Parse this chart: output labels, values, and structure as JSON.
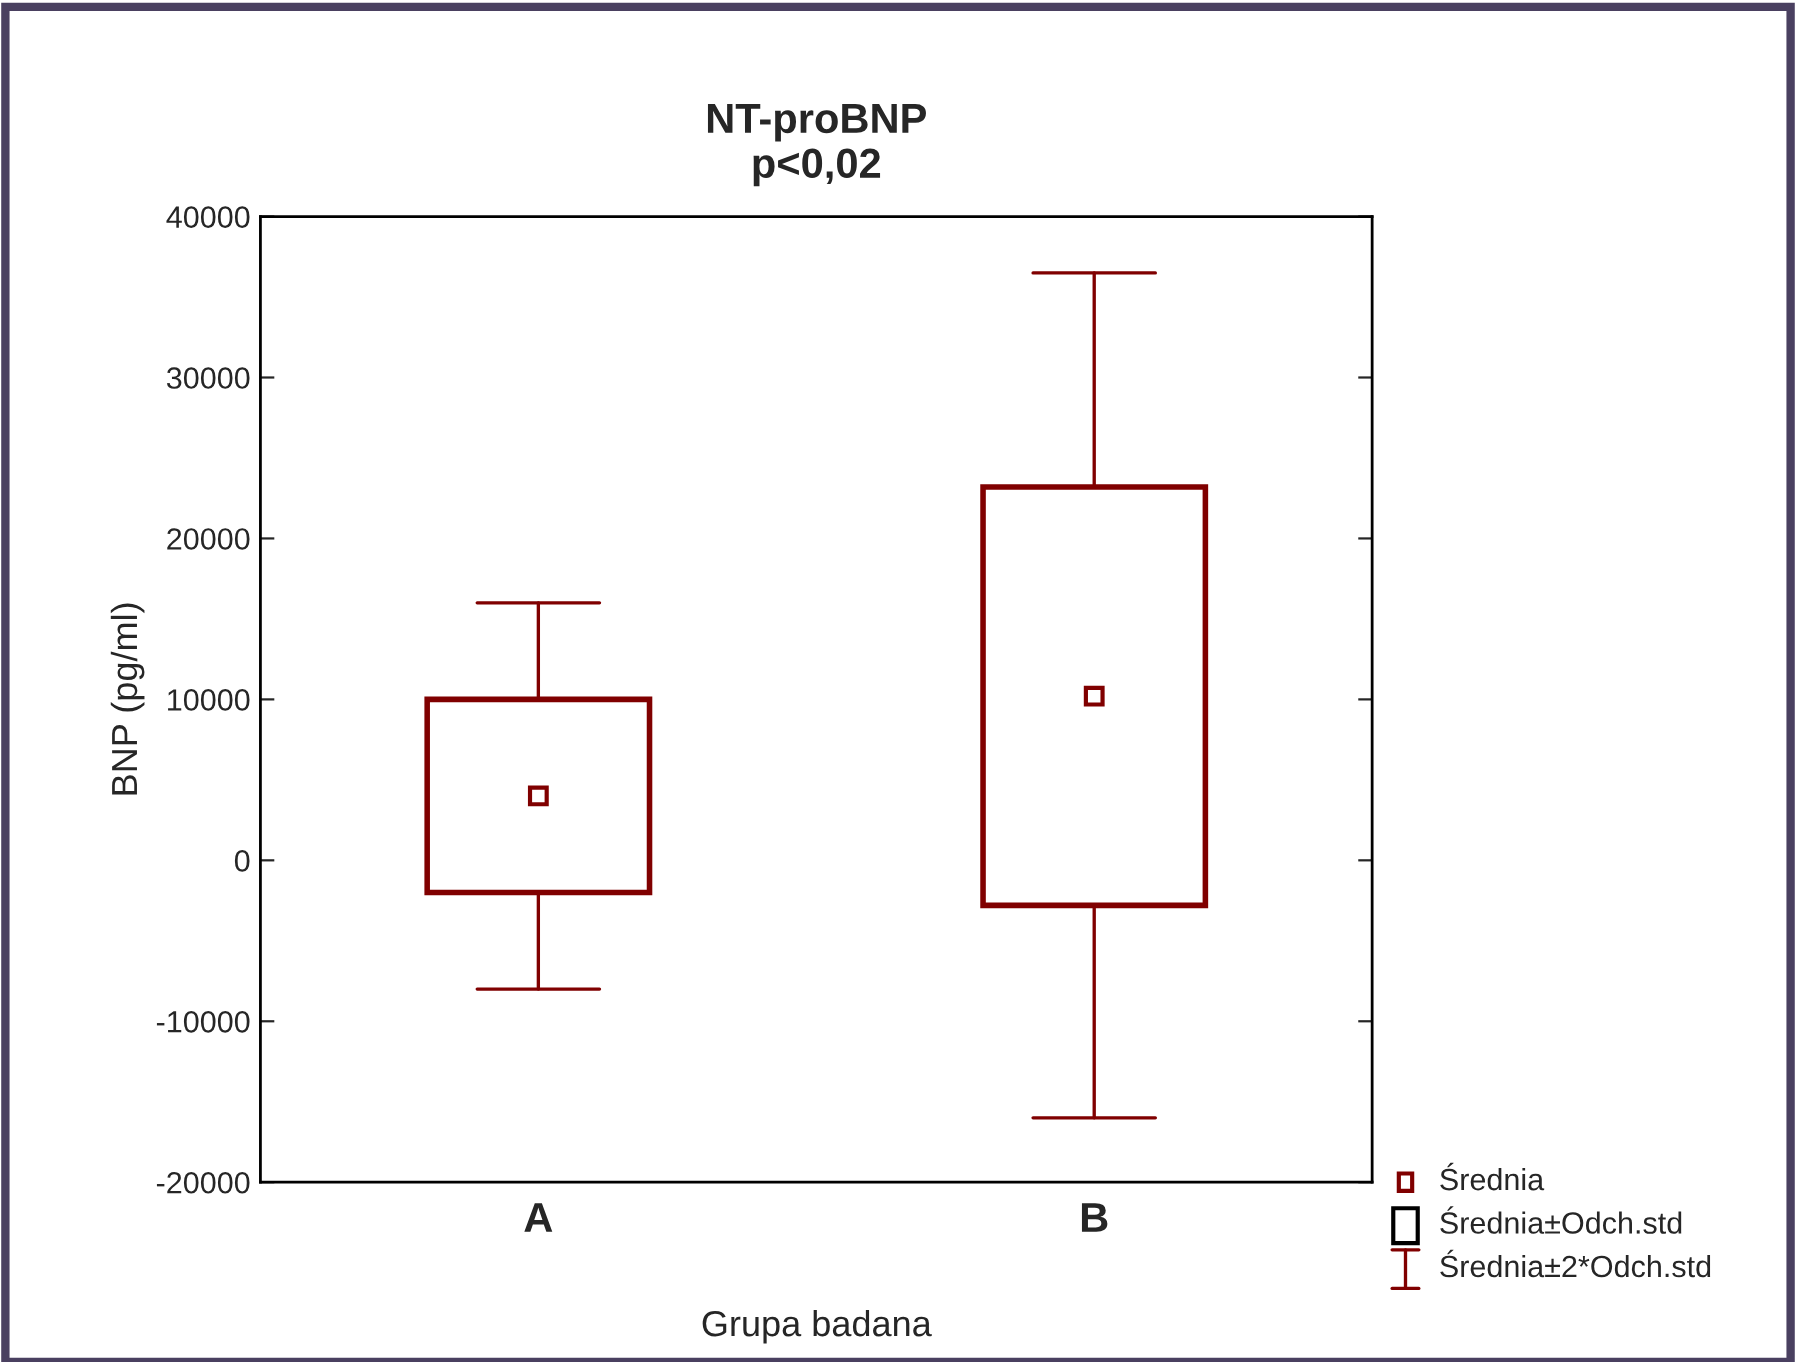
{
  "chart_data": {
    "type": "box",
    "title": "NT-proBNP",
    "subtitle": "p<0,02",
    "xlabel": "Grupa badana",
    "ylabel": "BNP (pg/ml)",
    "categories": [
      "A",
      "B"
    ],
    "boxes": [
      {
        "low": -8000,
        "q1": -2000,
        "mean": 4000,
        "q3": 10000,
        "high": 16000
      },
      {
        "low": -16000,
        "q1": -2800,
        "mean": 10200,
        "q3": 23200,
        "high": 36500
      }
    ],
    "color": "#800000",
    "ylim": [
      -20000,
      40000
    ],
    "yticks": [
      -20000,
      -10000,
      0,
      10000,
      20000,
      30000,
      40000
    ],
    "grid": false,
    "annotations": [
      "Średnia",
      "Średnia±Odch.std",
      "Średnia±2*Odch.std"
    ]
  }
}
